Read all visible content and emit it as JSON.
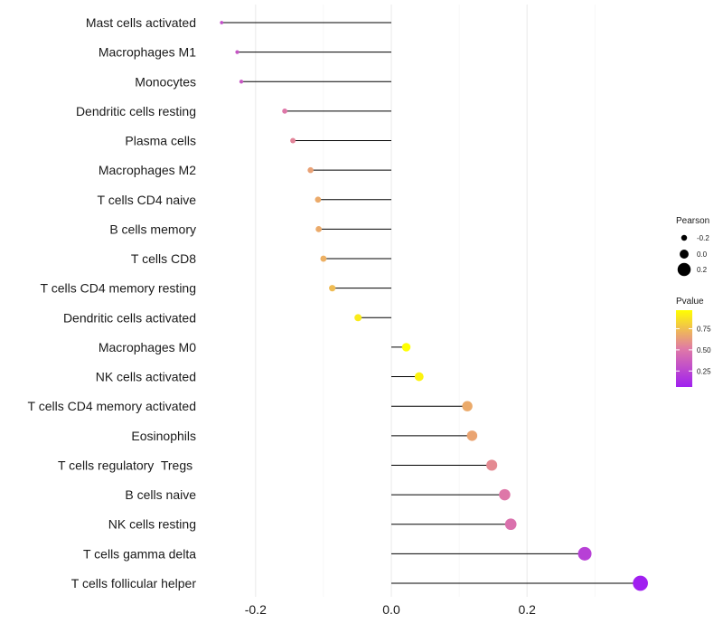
{
  "chart_data": {
    "type": "lollipop",
    "title": "",
    "xlabel": "",
    "ylabel": "",
    "xlim": [
      -0.255,
      0.37
    ],
    "xticks": [
      -0.2,
      0.0,
      0.2
    ],
    "xtick_labels": [
      "-0.2",
      "0.0",
      "0.2"
    ],
    "grid": true,
    "categories": [
      "Mast cells activated",
      "Macrophages M1",
      "Monocytes",
      "Dendritic cells resting",
      "Plasma cells",
      "Macrophages M2",
      "T cells CD4 naive",
      "B cells memory",
      "T cells CD8",
      "T cells CD4 memory resting",
      "Dendritic cells activated",
      "Macrophages M0",
      "NK cells activated",
      "T cells CD4 memory activated",
      "Eosinophils",
      "T cells regulatory  Tregs ",
      "B cells naive",
      "NK cells resting",
      "T cells gamma delta",
      "T cells follicular helper"
    ],
    "pearson": [
      -0.25,
      -0.227,
      -0.221,
      -0.157,
      -0.145,
      -0.119,
      -0.108,
      -0.107,
      -0.1,
      -0.087,
      -0.049,
      0.022,
      0.041,
      0.112,
      0.119,
      0.148,
      0.167,
      0.176,
      0.285,
      0.367
    ],
    "pvalue": [
      0.3,
      0.33,
      0.34,
      0.5,
      0.55,
      0.65,
      0.68,
      0.68,
      0.7,
      0.74,
      0.9,
      0.97,
      0.93,
      0.68,
      0.66,
      0.57,
      0.5,
      0.47,
      0.22,
      0.06
    ],
    "legend": {
      "size_title": "Pearson",
      "size_labels": [
        "-0.2",
        "0.0",
        "0.2"
      ],
      "size_values": [
        -0.2,
        0.0,
        0.2
      ],
      "color_title": "Pvalue",
      "color_labels": [
        "0.75",
        "0.50",
        "0.25"
      ],
      "color_values": [
        0.75,
        0.5,
        0.25
      ],
      "color_range": [
        0.06,
        0.97
      ],
      "color_low": "#a020f0",
      "color_mid": "#e07aa6",
      "color_high": "#ffff00",
      "placement": "right"
    }
  }
}
